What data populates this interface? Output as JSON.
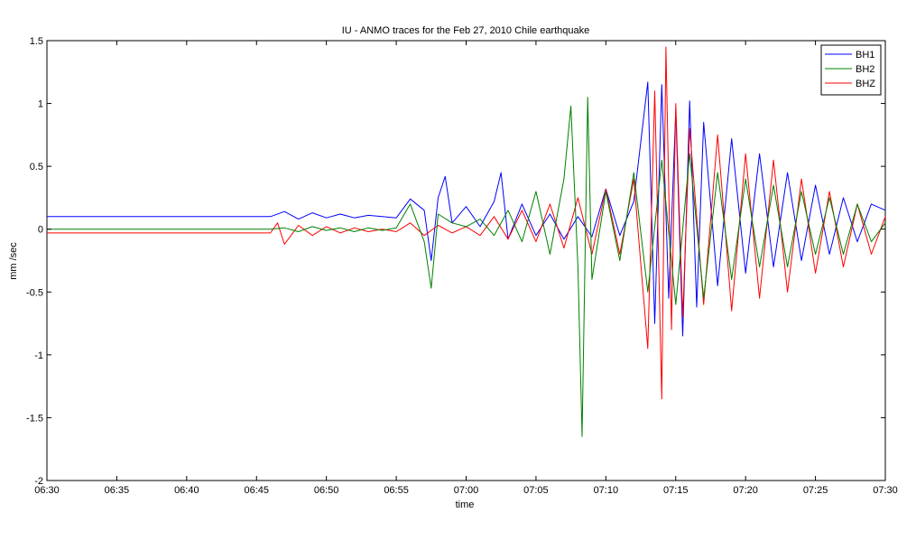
{
  "chart_data": {
    "type": "line",
    "title": "IU - ANMO traces for the Feb 27, 2010 Chile earthquake",
    "xlabel": "time",
    "ylabel": "mm /sec",
    "x_ticks": [
      "06:30",
      "06:35",
      "06:40",
      "06:45",
      "06:50",
      "06:55",
      "07:00",
      "07:05",
      "07:10",
      "07:15",
      "07:20",
      "07:25",
      "07:30"
    ],
    "xlim": [
      "06:30",
      "07:30"
    ],
    "ylim": [
      -2,
      1.5
    ],
    "y_ticks": [
      1.5,
      1,
      0.5,
      0,
      -0.5,
      -1,
      -1.5,
      -2
    ],
    "grid": false,
    "legend_position": "top-right",
    "series": [
      {
        "name": "BH1",
        "color": "#0000ff",
        "x": [
          "06:30",
          "06:46",
          "06:47",
          "06:48",
          "06:49",
          "06:50",
          "06:51",
          "06:52",
          "06:53",
          "06:54",
          "06:55",
          "06:56",
          "06:57",
          "06:57.5",
          "06:58",
          "06:58.5",
          "06:59",
          "07:00",
          "07:01",
          "07:02",
          "07:02.5",
          "07:03",
          "07:04",
          "07:05",
          "07:06",
          "07:07",
          "07:08",
          "07:09",
          "07:10",
          "07:11",
          "07:12",
          "07:13",
          "07:13.5",
          "07:14",
          "07:14.5",
          "07:15",
          "07:15.5",
          "07:16",
          "07:16.5",
          "07:17",
          "07:18",
          "07:19",
          "07:20",
          "07:21",
          "07:22",
          "07:23",
          "07:24",
          "07:25",
          "07:26",
          "07:27",
          "07:28",
          "07:29",
          "07:30"
        ],
        "values": [
          0.1,
          0.1,
          0.14,
          0.08,
          0.13,
          0.09,
          0.12,
          0.09,
          0.11,
          0.1,
          0.09,
          0.24,
          0.15,
          -0.25,
          0.25,
          0.42,
          0.05,
          0.18,
          0.02,
          0.22,
          0.45,
          -0.08,
          0.2,
          -0.05,
          0.12,
          -0.08,
          0.1,
          -0.06,
          0.32,
          -0.05,
          0.22,
          1.17,
          -0.75,
          1.15,
          -0.55,
          0.95,
          -0.85,
          1.02,
          -0.62,
          0.85,
          -0.45,
          0.72,
          -0.35,
          0.6,
          -0.3,
          0.45,
          -0.25,
          0.35,
          -0.2,
          0.25,
          -0.1,
          0.2,
          0.15
        ]
      },
      {
        "name": "BH2",
        "color": "#008000",
        "x": [
          "06:30",
          "06:46",
          "06:47",
          "06:48",
          "06:49",
          "06:50",
          "06:51",
          "06:52",
          "06:53",
          "06:54",
          "06:55",
          "06:56",
          "06:57",
          "06:57.5",
          "06:58",
          "06:59",
          "07:00",
          "07:01",
          "07:02",
          "07:03",
          "07:04",
          "07:05",
          "07:06",
          "07:07",
          "07:07.5",
          "07:08",
          "07:08.3",
          "07:08.7",
          "07:09",
          "07:10",
          "07:11",
          "07:12",
          "07:13",
          "07:14",
          "07:15",
          "07:16",
          "07:17",
          "07:18",
          "07:19",
          "07:20",
          "07:21",
          "07:22",
          "07:23",
          "07:24",
          "07:25",
          "07:26",
          "07:27",
          "07:28",
          "07:29",
          "07:30"
        ],
        "values": [
          0,
          0,
          0.01,
          -0.02,
          0.02,
          -0.01,
          0.01,
          -0.02,
          0.01,
          -0.01,
          0.01,
          0.2,
          -0.1,
          -0.47,
          0.12,
          0.05,
          0.02,
          0.08,
          -0.05,
          0.15,
          -0.1,
          0.3,
          -0.2,
          0.4,
          0.98,
          -0.3,
          -1.65,
          1.05,
          -0.4,
          0.3,
          -0.25,
          0.45,
          -0.5,
          0.55,
          -0.6,
          0.6,
          -0.55,
          0.45,
          -0.4,
          0.4,
          -0.3,
          0.35,
          -0.3,
          0.3,
          -0.2,
          0.25,
          -0.2,
          0.2,
          -0.1,
          0.05
        ]
      },
      {
        "name": "BHZ",
        "color": "#ff0000",
        "x": [
          "06:30",
          "06:46",
          "06:46.5",
          "06:47",
          "06:48",
          "06:49",
          "06:50",
          "06:51",
          "06:52",
          "06:53",
          "06:54",
          "06:55",
          "06:56",
          "06:57",
          "06:58",
          "06:59",
          "07:00",
          "07:01",
          "07:02",
          "07:03",
          "07:04",
          "07:05",
          "07:06",
          "07:07",
          "07:08",
          "07:09",
          "07:10",
          "07:11",
          "07:12",
          "07:13",
          "07:13.5",
          "07:14",
          "07:14.3",
          "07:14.7",
          "07:15",
          "07:15.5",
          "07:16",
          "07:17",
          "07:18",
          "07:19",
          "07:20",
          "07:21",
          "07:22",
          "07:23",
          "07:24",
          "07:25",
          "07:26",
          "07:27",
          "07:28",
          "07:29",
          "07:30"
        ],
        "values": [
          -0.03,
          -0.03,
          0.05,
          -0.12,
          0.03,
          -0.05,
          0.02,
          -0.03,
          0.01,
          -0.02,
          0.0,
          -0.02,
          0.05,
          -0.05,
          0.03,
          -0.03,
          0.02,
          -0.05,
          0.1,
          -0.08,
          0.15,
          -0.1,
          0.2,
          -0.15,
          0.25,
          -0.2,
          0.32,
          -0.2,
          0.4,
          -0.95,
          1.1,
          -1.35,
          1.45,
          -0.8,
          1.0,
          -0.7,
          0.8,
          -0.6,
          0.75,
          -0.65,
          0.6,
          -0.55,
          0.55,
          -0.5,
          0.4,
          -0.35,
          0.3,
          -0.3,
          0.2,
          -0.2,
          0.1
        ]
      }
    ]
  }
}
